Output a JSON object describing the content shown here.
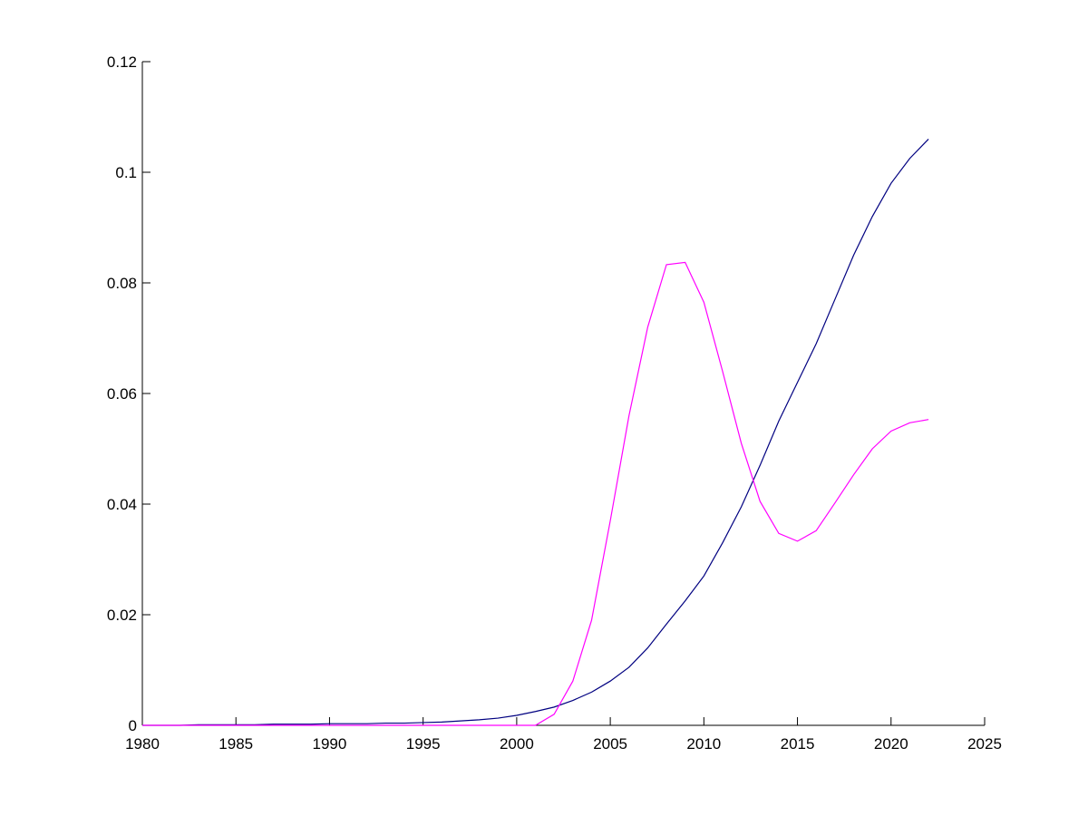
{
  "chart_data": {
    "type": "line",
    "x": [
      1980,
      1981,
      1982,
      1983,
      1984,
      1985,
      1986,
      1987,
      1988,
      1989,
      1990,
      1991,
      1992,
      1993,
      1994,
      1995,
      1996,
      1997,
      1998,
      1999,
      2000,
      2001,
      2002,
      2003,
      2004,
      2005,
      2006,
      2007,
      2008,
      2009,
      2010,
      2011,
      2012,
      2013,
      2014,
      2015,
      2016,
      2017,
      2018,
      2019,
      2020,
      2021,
      2022
    ],
    "series": [
      {
        "color": "#000080",
        "values": [
          0,
          0,
          0,
          0.0001,
          0.0001,
          0.0001,
          0.0001,
          0.0002,
          0.0002,
          0.0002,
          0.0003,
          0.0003,
          0.0003,
          0.0004,
          0.0004,
          0.0005,
          0.0006,
          0.0008,
          0.001,
          0.0013,
          0.0018,
          0.0025,
          0.0033,
          0.0045,
          0.006,
          0.008,
          0.0105,
          0.014,
          0.0183,
          0.0225,
          0.027,
          0.033,
          0.0395,
          0.047,
          0.055,
          0.062,
          0.069,
          0.077,
          0.085,
          0.092,
          0.098,
          0.1025,
          0.106
        ]
      },
      {
        "color": "#ff00ff",
        "values": [
          0,
          0,
          0,
          0,
          0,
          0,
          0,
          0,
          0,
          0,
          0,
          0,
          0,
          0,
          0,
          0,
          0,
          0,
          0,
          0,
          0,
          0,
          0.002,
          0.008,
          0.019,
          0.037,
          0.056,
          0.072,
          0.0833,
          0.0837,
          0.0765,
          0.064,
          0.051,
          0.0405,
          0.0347,
          0.0333,
          0.0352,
          0.0402,
          0.0453,
          0.05,
          0.0532,
          0.0547,
          0.0553
        ]
      }
    ],
    "xlim": [
      1980,
      2025
    ],
    "xticks": [
      1980,
      1985,
      1990,
      1995,
      2000,
      2005,
      2010,
      2015,
      2020,
      2025
    ],
    "ylim": [
      0,
      0.12
    ],
    "yticks": [
      0,
      0.02,
      0.04,
      0.06,
      0.08,
      0.1,
      0.12
    ]
  }
}
